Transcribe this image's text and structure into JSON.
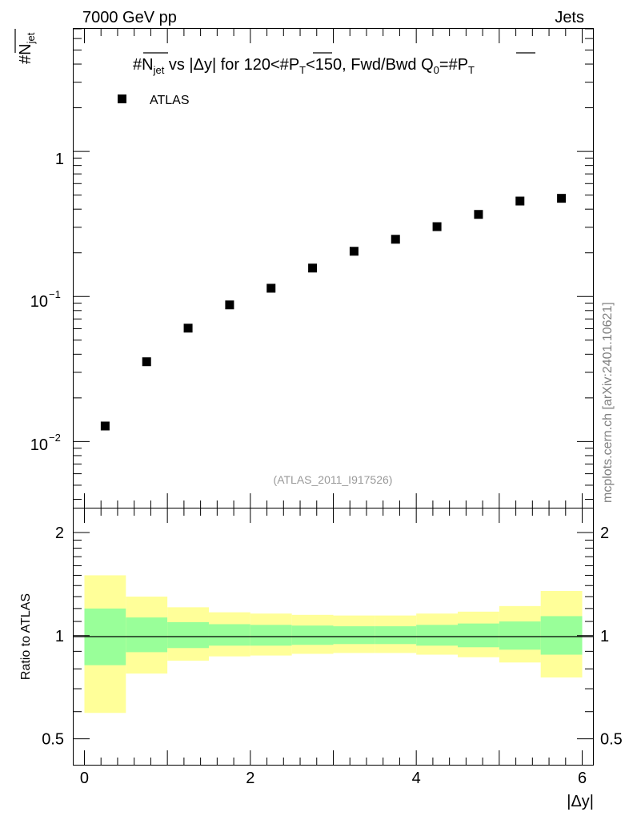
{
  "header": {
    "left": "7000 GeV pp",
    "right": "Jets"
  },
  "ylabel_top": {
    "hash": "#",
    "letter": "N",
    "sub": "jet"
  },
  "title": {
    "p1": "#",
    "p2": "N",
    "p3": "jet",
    "p4": " vs |Δy| for 120<#",
    "p5": "P",
    "p6": "T",
    "p7": "<150, Fwd/Bwd Q",
    "p8": "0",
    "p9": "=#",
    "p10": "P",
    "p11": "T"
  },
  "legend": {
    "label": "ATLAS"
  },
  "analysis_id": "(ATLAS_2011_I917526)",
  "watermark": "mcplots.cern.ch [arXiv:2401.10621]",
  "ratio_ylabel": "Ratio to ATLAS",
  "xlabel": "|Δy|",
  "main_tick_labels": {
    "one": "1",
    "m1_base": "10",
    "m1_exp": "−1",
    "m2_base": "10",
    "m2_exp": "−2"
  },
  "ratio_tick_labels": [
    "0.5",
    "1",
    "2"
  ],
  "x_tick_labels": [
    "0",
    "2",
    "4",
    "6"
  ],
  "colors": {
    "band_outer": "#ffff99",
    "band_inner": "#99ff99",
    "markers": "#000000",
    "analysis_id": "#999999",
    "watermark": "#808080"
  },
  "chart_data": {
    "type": "scatter",
    "x_edges": [
      0,
      0.5,
      1.0,
      1.5,
      2.0,
      2.5,
      3.0,
      3.5,
      4.0,
      4.5,
      5.0,
      5.5,
      6.0
    ],
    "x": [
      0.25,
      0.75,
      1.25,
      1.75,
      2.25,
      2.75,
      3.25,
      3.75,
      4.25,
      4.75,
      5.25,
      5.75
    ],
    "series": [
      {
        "name": "ATLAS",
        "values": [
          0.0128,
          0.0355,
          0.0605,
          0.0875,
          0.114,
          0.157,
          0.205,
          0.248,
          0.303,
          0.368,
          0.455,
          0.475
        ]
      }
    ],
    "xlim": [
      -0.13,
      6.13
    ],
    "ylim": [
      0.0035,
      7.0
    ],
    "yscale": "log",
    "ratio": {
      "ylabel": "Ratio to ATLAS",
      "ylim": [
        0.42,
        2.35
      ],
      "yscale": "log",
      "inner_lo": [
        0.82,
        0.895,
        0.92,
        0.935,
        0.935,
        0.94,
        0.945,
        0.945,
        0.935,
        0.925,
        0.91,
        0.88
      ],
      "inner_hi": [
        1.2,
        1.13,
        1.095,
        1.08,
        1.075,
        1.07,
        1.065,
        1.065,
        1.075,
        1.085,
        1.1,
        1.14
      ],
      "outer_lo": [
        0.595,
        0.775,
        0.845,
        0.87,
        0.875,
        0.885,
        0.89,
        0.89,
        0.88,
        0.865,
        0.835,
        0.755
      ],
      "outer_hi": [
        1.5,
        1.3,
        1.21,
        1.17,
        1.16,
        1.15,
        1.145,
        1.145,
        1.16,
        1.175,
        1.22,
        1.35
      ]
    },
    "title": "#N_jet vs |Δy| for 120<#P_T<150, Fwd/Bwd Q_0=#P_T",
    "xlabel": "|Δy|",
    "ylabel": "#N_jet"
  }
}
